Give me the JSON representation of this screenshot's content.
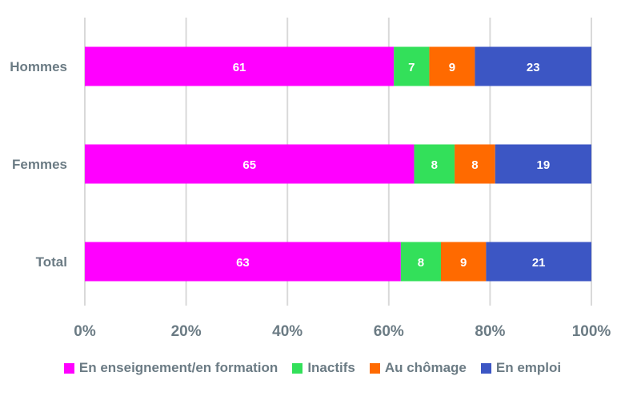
{
  "chart_data": {
    "type": "bar",
    "orientation": "horizontal",
    "stacked": true,
    "categories": [
      "Hommes",
      "Femmes",
      "Total"
    ],
    "series": [
      {
        "name": "En enseignement/en formation",
        "color": "#ff00ff",
        "values": [
          61,
          65,
          63
        ]
      },
      {
        "name": "Inactifs",
        "color": "#33e05a",
        "values": [
          7,
          8,
          8
        ]
      },
      {
        "name": "Au chômage",
        "color": "#ff6a00",
        "values": [
          9,
          8,
          9
        ]
      },
      {
        "name": "En emploi",
        "color": "#3c56c4",
        "values": [
          23,
          19,
          21
        ]
      }
    ],
    "xlim": [
      0,
      100
    ],
    "xticks": [
      "0%",
      "20%",
      "40%",
      "60%",
      "80%",
      "100%"
    ],
    "grid": true,
    "legend_position": "bottom"
  }
}
